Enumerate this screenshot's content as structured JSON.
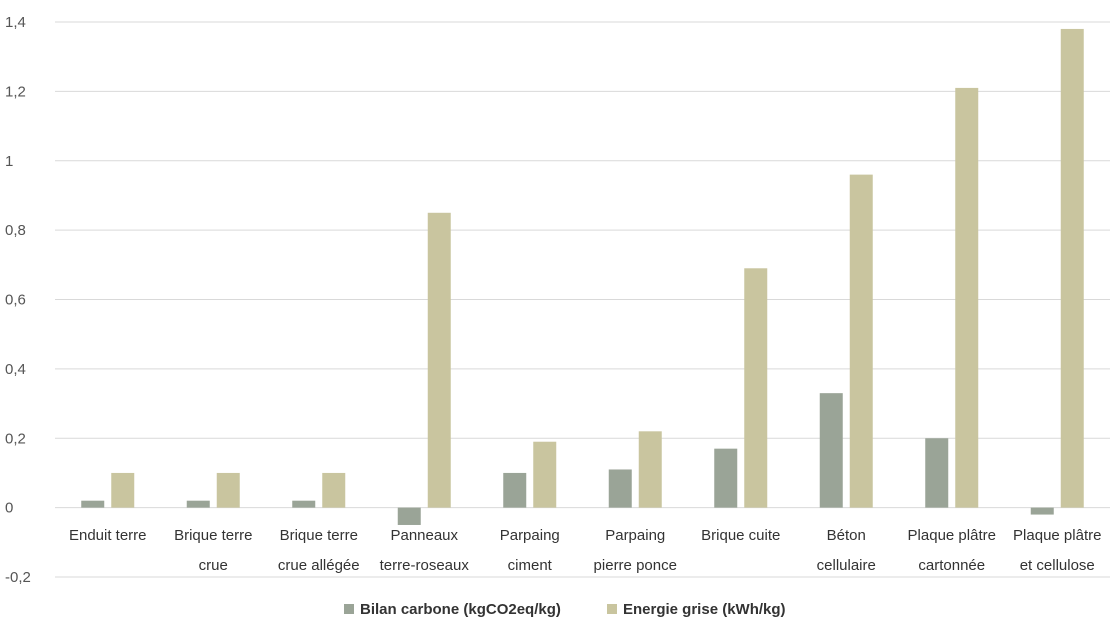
{
  "chart_data": {
    "type": "bar",
    "title": "",
    "xlabel": "",
    "ylabel": "",
    "ylim": [
      -0.2,
      1.4
    ],
    "yticks": [
      "-0,2",
      "0",
      "0,2",
      "0,4",
      "0,6",
      "0,8",
      "1",
      "1,2",
      "1,4"
    ],
    "ytick_values": [
      -0.2,
      0,
      0.2,
      0.4,
      0.6,
      0.8,
      1.0,
      1.2,
      1.4
    ],
    "grid": true,
    "legend_position": "bottom",
    "categories": [
      [
        "Enduit terre"
      ],
      [
        "Brique terre",
        "crue"
      ],
      [
        "Brique terre",
        "crue allégée"
      ],
      [
        "Panneaux",
        "terre-roseaux"
      ],
      [
        "Parpaing",
        "ciment"
      ],
      [
        "Parpaing",
        "pierre ponce"
      ],
      [
        "Brique cuite"
      ],
      [
        "Béton",
        "cellulaire"
      ],
      [
        "Plaque plâtre",
        "cartonnée"
      ],
      [
        "Plaque plâtre",
        "et cellulose"
      ]
    ],
    "series": [
      {
        "name": "Bilan carbone (kgCO2eq/kg)",
        "color": "#9aa497",
        "values": [
          0.02,
          0.02,
          0.02,
          -0.05,
          0.1,
          0.11,
          0.17,
          0.33,
          0.2,
          -0.02
        ]
      },
      {
        "name": "Energie grise (kWh/kg)",
        "color": "#c9c59f",
        "values": [
          0.1,
          0.1,
          0.1,
          0.85,
          0.19,
          0.22,
          0.69,
          0.96,
          1.21,
          1.38
        ]
      }
    ]
  }
}
